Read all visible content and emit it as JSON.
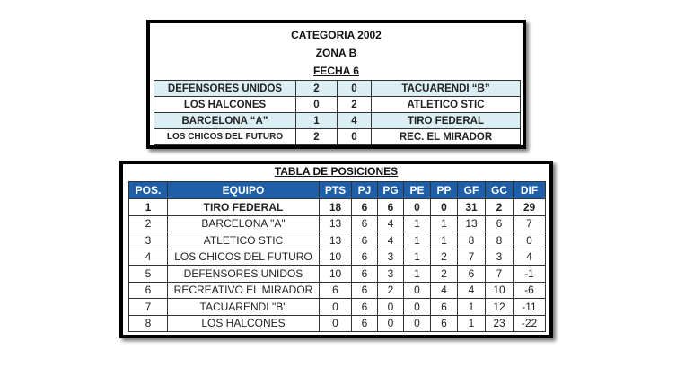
{
  "results": {
    "category": "CATEGORIA 2002",
    "zone": "ZONA B",
    "round": "FECHA 6",
    "matches": [
      {
        "home": "DEFENSORES UNIDOS",
        "home_goals": "2",
        "away_goals": "0",
        "away": "TACUARENDI “B”"
      },
      {
        "home": "LOS HALCONES",
        "home_goals": "0",
        "away_goals": "2",
        "away": "ATLETICO STIC"
      },
      {
        "home": "BARCELONA “A”",
        "home_goals": "1",
        "away_goals": "4",
        "away": "TIRO FEDERAL"
      },
      {
        "home": "LOS CHICOS DEL FUTURO",
        "home_goals": "2",
        "away_goals": "0",
        "away": "REC. EL MIRADOR"
      }
    ]
  },
  "standings": {
    "title": "TABLA DE POSICIONES",
    "headers": [
      "POS.",
      "EQUIPO",
      "PTS",
      "PJ",
      "PG",
      "PE",
      "PP",
      "GF",
      "GC",
      "DIF"
    ],
    "rows": [
      [
        "1",
        "TIRO FEDERAL",
        "18",
        "6",
        "6",
        "0",
        "0",
        "31",
        "2",
        "29"
      ],
      [
        "2",
        "BARCELONA \"A\"",
        "13",
        "6",
        "4",
        "1",
        "1",
        "13",
        "6",
        "7"
      ],
      [
        "3",
        "ATLETICO STIC",
        "13",
        "6",
        "4",
        "1",
        "1",
        "8",
        "8",
        "0"
      ],
      [
        "4",
        "LOS CHICOS DEL FUTURO",
        "10",
        "6",
        "3",
        "1",
        "2",
        "7",
        "3",
        "4"
      ],
      [
        "5",
        "DEFENSORES UNIDOS",
        "10",
        "6",
        "3",
        "1",
        "2",
        "6",
        "7",
        "-1"
      ],
      [
        "6",
        "RECREATIVO EL MIRADOR",
        "6",
        "6",
        "2",
        "0",
        "4",
        "4",
        "10",
        "-6"
      ],
      [
        "7",
        "TACUARENDI \"B\"",
        "0",
        "6",
        "0",
        "0",
        "6",
        "1",
        "12",
        "-11"
      ],
      [
        "8",
        "LOS HALCONES",
        "0",
        "6",
        "0",
        "0",
        "6",
        "1",
        "23",
        "-22"
      ]
    ],
    "header_color": "#1f5fa8"
  }
}
